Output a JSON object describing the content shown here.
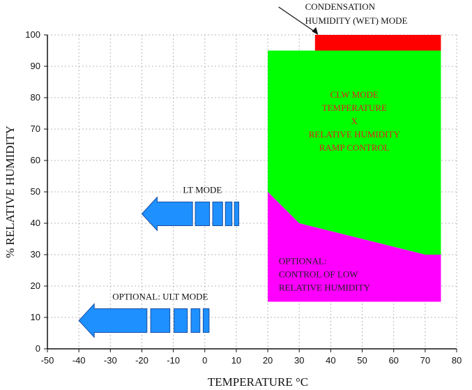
{
  "chart_data": {
    "type": "area",
    "title": "",
    "xlabel": "TEMPERATURE °C",
    "ylabel": "% RELATIVE HUMIDITY",
    "xlim": [
      -50,
      80
    ],
    "ylim": [
      0,
      100
    ],
    "x_ticks": [
      -50,
      -40,
      -30,
      -20,
      -10,
      0,
      10,
      20,
      30,
      40,
      50,
      60,
      70,
      80
    ],
    "y_ticks": [
      0,
      10,
      20,
      30,
      40,
      50,
      60,
      70,
      80,
      90,
      100
    ],
    "grid": true,
    "regions": [
      {
        "id": "clw",
        "color": "#00ff00",
        "label_lines": [
          "CLW MODE",
          "TEMPERATURE",
          "X",
          "RELATIVE HUMIDITY",
          "RAMP CONTROL"
        ],
        "label_color": "#e02020",
        "polygon": [
          [
            20,
            95
          ],
          [
            75,
            95
          ],
          [
            75,
            30
          ],
          [
            70,
            30
          ],
          [
            30,
            40
          ],
          [
            20,
            50
          ]
        ]
      },
      {
        "id": "low-rh",
        "color": "#ff00ff",
        "label_lines": [
          "OPTIONAL:",
          "CONTROL OF LOW",
          "RELATIVE HUMIDITY"
        ],
        "label_color": "#222222",
        "polygon": [
          [
            20,
            50
          ],
          [
            30,
            40
          ],
          [
            70,
            30
          ],
          [
            75,
            30
          ],
          [
            75,
            15
          ],
          [
            20,
            15
          ]
        ]
      },
      {
        "id": "wet",
        "color": "#ff0000",
        "label_lines": [],
        "polygon": [
          [
            35,
            100
          ],
          [
            75,
            100
          ],
          [
            75,
            95
          ],
          [
            35,
            95
          ]
        ]
      }
    ],
    "arrows": [
      {
        "id": "lt-mode",
        "label": "LT MODE",
        "from_x": 15,
        "to_x": -20,
        "y": 43,
        "color": "#1e90ff"
      },
      {
        "id": "ult-mode",
        "label": "OPTIONAL: ULT MODE",
        "from_x": 7,
        "to_x": -40,
        "y": 9,
        "color": "#1e90ff"
      }
    ],
    "callout": {
      "label_lines": [
        "CONDENSATION",
        "HUMIDITY (WET) MODE"
      ],
      "point": [
        36,
        100
      ]
    }
  }
}
